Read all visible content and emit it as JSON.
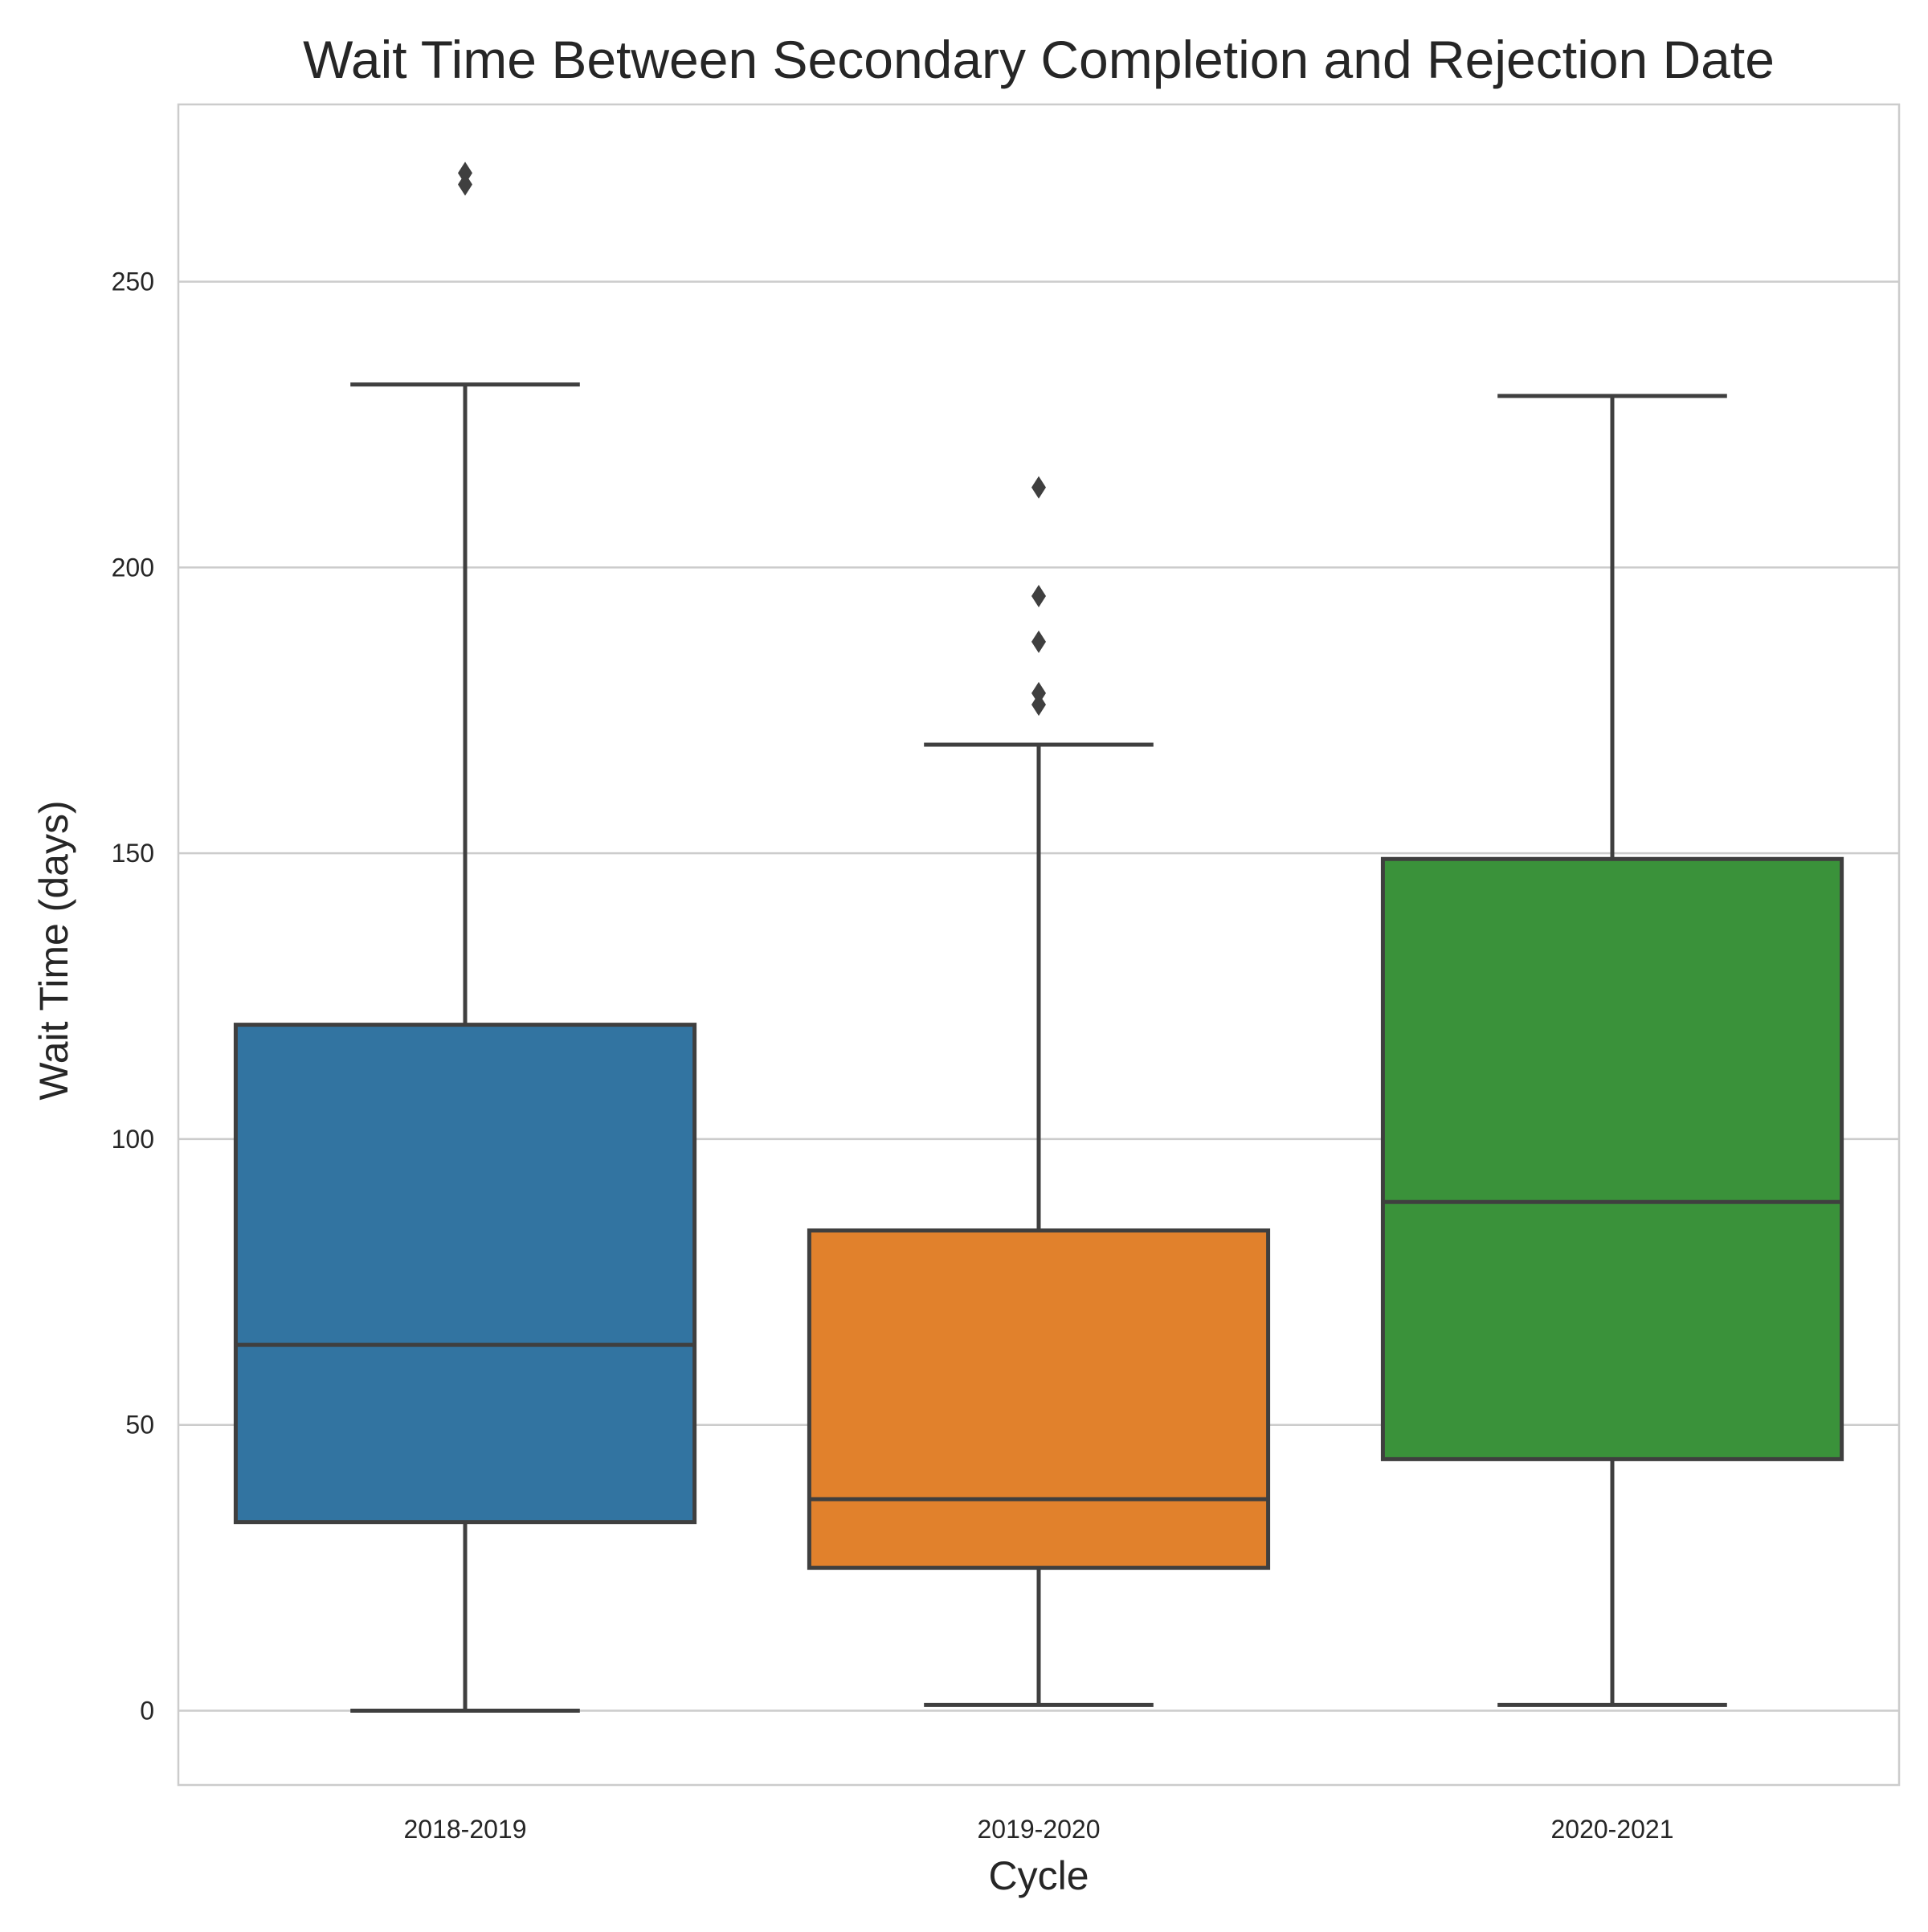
{
  "chart_data": {
    "type": "box",
    "title": "Wait Time Between Secondary Completion and Rejection Date",
    "xlabel": "Cycle",
    "ylabel": "Wait Time (days)",
    "ylim": [
      -13,
      281
    ],
    "yticks": [
      0,
      50,
      100,
      150,
      200,
      250
    ],
    "grid": true,
    "categories": [
      "2018-2019",
      "2019-2020",
      "2020-2021"
    ],
    "boxes": [
      {
        "category": "2018-2019",
        "whisker_low": 0,
        "q1": 33,
        "median": 64,
        "q3": 120,
        "whisker_high": 232,
        "outliers": [
          267,
          269
        ],
        "color": "#3274a1"
      },
      {
        "category": "2019-2020",
        "whisker_low": 1,
        "q1": 25,
        "median": 37,
        "q3": 84,
        "whisker_high": 169,
        "outliers": [
          176,
          178,
          187,
          195,
          214
        ],
        "color": "#e1812c"
      },
      {
        "category": "2020-2021",
        "whisker_low": 1,
        "q1": 44,
        "median": 89,
        "q3": 149,
        "whisker_high": 230,
        "outliers": [],
        "color": "#3a923a"
      }
    ],
    "line_color": "#3f3f3f",
    "grid_color": "#cccccc",
    "frame_color": "#cccccc"
  }
}
